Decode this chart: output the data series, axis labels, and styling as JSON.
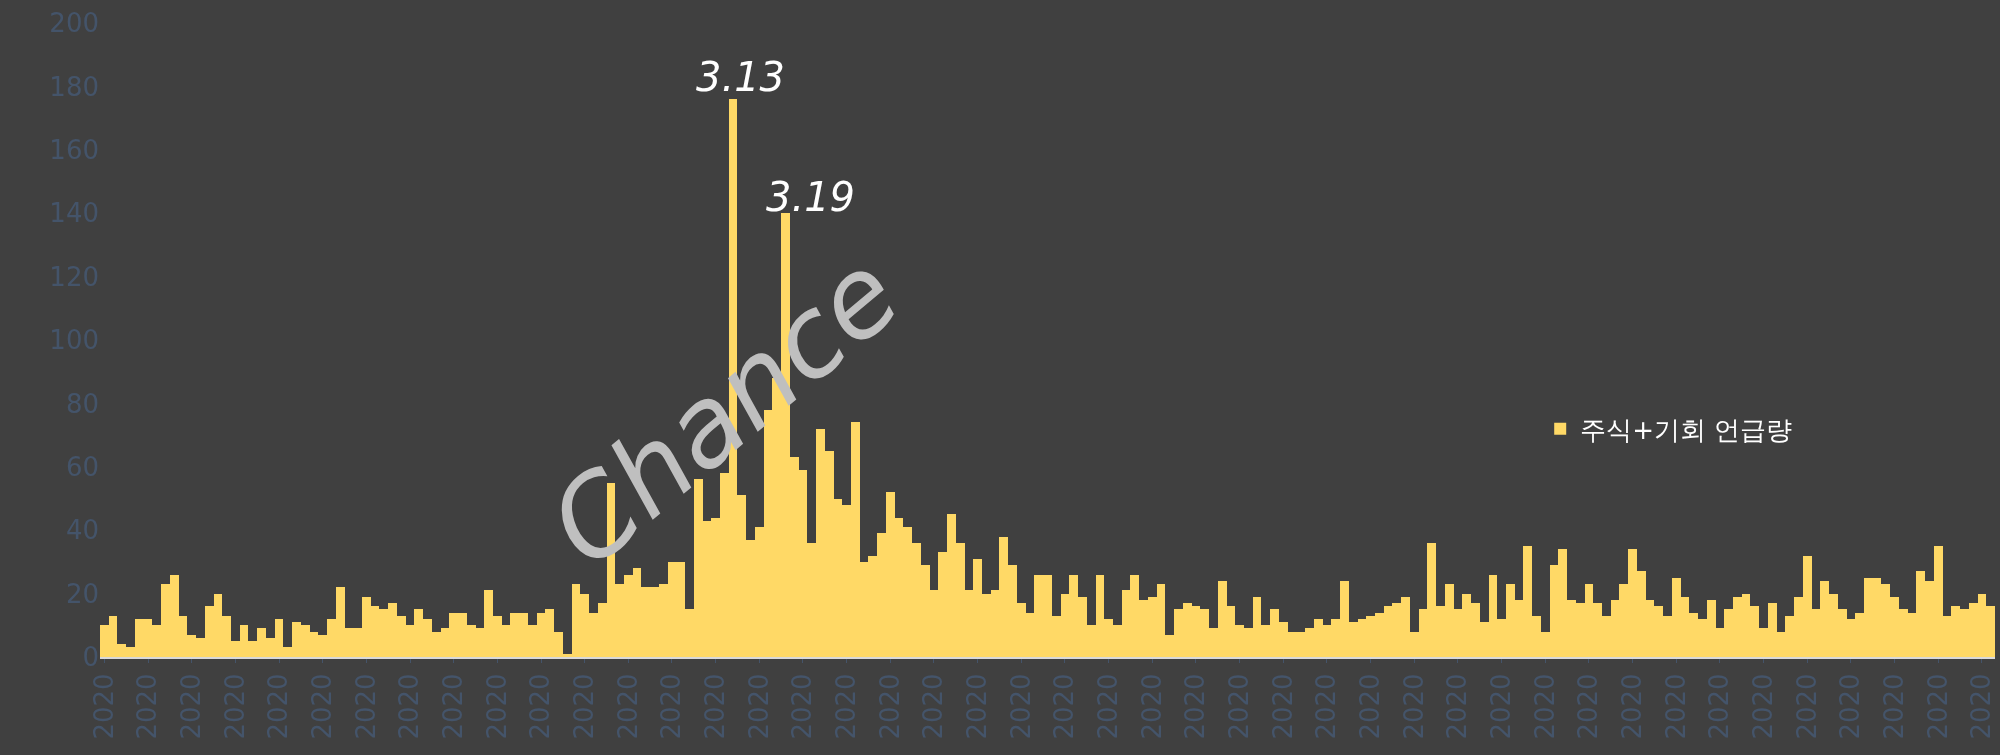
{
  "chart_data": {
    "type": "bar",
    "categories": [
      "2020",
      null,
      null,
      null,
      null,
      "2020",
      null,
      null,
      null,
      null,
      "2020",
      null,
      null,
      null,
      null,
      "2020",
      null,
      null,
      null,
      null,
      "2020",
      null,
      null,
      null,
      null,
      "2020",
      null,
      null,
      null,
      null,
      "2020",
      null,
      null,
      null,
      null,
      "2020",
      null,
      null,
      null,
      null,
      "2020",
      null,
      null,
      null,
      null,
      "2020",
      null,
      null,
      null,
      null,
      "2020",
      null,
      null,
      null,
      null,
      "2020",
      null,
      null,
      null,
      null,
      "2020",
      null,
      null,
      null,
      null,
      "2020",
      null,
      null,
      null,
      null,
      "2020",
      null,
      null,
      null,
      null,
      "2020",
      null,
      null,
      null,
      null,
      "2020",
      null,
      null,
      null,
      null,
      "2020",
      null,
      null,
      null,
      null,
      "2020",
      null,
      null,
      null,
      null,
      "2020",
      null,
      null,
      null,
      null,
      "2020",
      null,
      null,
      null,
      null,
      "2020",
      null,
      null,
      null,
      null,
      "2020",
      null,
      null,
      null,
      null,
      "2020",
      null,
      null,
      null,
      null,
      "2020",
      null,
      null,
      null,
      null,
      "2020",
      null,
      null,
      null,
      null,
      "2020",
      null,
      null,
      null,
      null,
      "2020",
      null,
      null,
      null,
      null,
      "2020",
      null,
      null,
      null,
      null,
      "2020",
      null,
      null,
      null,
      null,
      "2020",
      null,
      null,
      null,
      null,
      "2020",
      null,
      null,
      null,
      null,
      "2020",
      null,
      null,
      null,
      null,
      "2020",
      null,
      null,
      null,
      null,
      "2020",
      null,
      null,
      null,
      null,
      "2020",
      null,
      null,
      null,
      null,
      "2020",
      null,
      null,
      null,
      null,
      "2020",
      null,
      null,
      null,
      null,
      "2020",
      null,
      null,
      null,
      null,
      "2020",
      null,
      null,
      null,
      null,
      "2020",
      null,
      null,
      null,
      null,
      "2020",
      null,
      null,
      null,
      null,
      "2020",
      null,
      null,
      null,
      null,
      "2020",
      null
    ],
    "series": [
      {
        "name": "주식+기회 언급량",
        "color": "#ffd966",
        "values": [
          10,
          13,
          4,
          3,
          12,
          12,
          10,
          23,
          26,
          13,
          7,
          6,
          16,
          20,
          13,
          5,
          10,
          5,
          9,
          6,
          12,
          3,
          11,
          10,
          8,
          7,
          12,
          22,
          9,
          9,
          19,
          16,
          15,
          17,
          13,
          10,
          15,
          12,
          8,
          9,
          14,
          14,
          10,
          9,
          21,
          13,
          10,
          14,
          14,
          10,
          14,
          15,
          8,
          1,
          23,
          20,
          14,
          17,
          55,
          23,
          26,
          28,
          22,
          22,
          23,
          30,
          30,
          15,
          56,
          43,
          44,
          58,
          176,
          51,
          37,
          41,
          78,
          88,
          140,
          63,
          59,
          36,
          72,
          65,
          50,
          48,
          74,
          30,
          32,
          39,
          52,
          44,
          41,
          36,
          29,
          21,
          33,
          45,
          36,
          21,
          31,
          20,
          21,
          38,
          29,
          17,
          14,
          26,
          26,
          13,
          20,
          26,
          19,
          10,
          26,
          12,
          10,
          21,
          26,
          18,
          19,
          23,
          7,
          15,
          17,
          16,
          15,
          9,
          24,
          16,
          10,
          9,
          19,
          10,
          15,
          11,
          8,
          8,
          9,
          12,
          10,
          12,
          24,
          11,
          12,
          13,
          14,
          16,
          17,
          19,
          8,
          15,
          36,
          16,
          23,
          15,
          20,
          17,
          11,
          26,
          12,
          23,
          18,
          35,
          13,
          8,
          29,
          34,
          18,
          17,
          23,
          17,
          13,
          18,
          23,
          34,
          27,
          18,
          16,
          13,
          25,
          19,
          14,
          12,
          18,
          9,
          15,
          19,
          20,
          16,
          9,
          17,
          8,
          13,
          19,
          32,
          15,
          24,
          20,
          15,
          12,
          14,
          25,
          25,
          23,
          19,
          15,
          14,
          27,
          24,
          35,
          13,
          16,
          15,
          17,
          20,
          16
        ]
      }
    ],
    "annotations": [
      "Chance",
      "3.13",
      "3.19"
    ],
    "ylim": [
      0,
      200
    ],
    "yticks": [
      0,
      20,
      40,
      60,
      80,
      100,
      120,
      140,
      160,
      180,
      200
    ],
    "grid": false,
    "legend": "right"
  }
}
